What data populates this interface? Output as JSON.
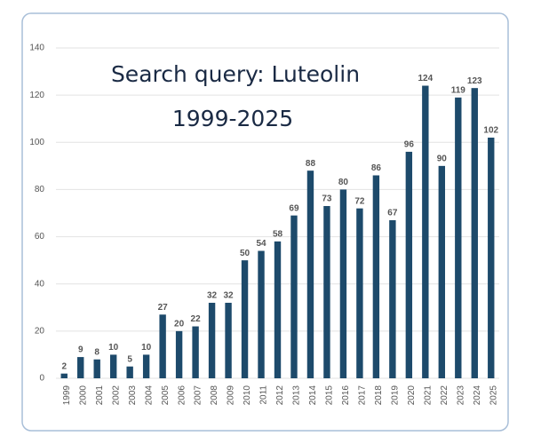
{
  "chart_data": {
    "type": "bar",
    "title": "Search query: Luteolin",
    "subtitle": "1999-2025",
    "categories": [
      "1999",
      "2000",
      "2001",
      "2002",
      "2003",
      "2004",
      "2005",
      "2006",
      "2007",
      "2008",
      "2009",
      "2010",
      "2011",
      "2012",
      "2013",
      "2014",
      "2015",
      "2016",
      "2017",
      "2018",
      "2019",
      "2020",
      "2021",
      "2022",
      "2023",
      "2024",
      "2025"
    ],
    "values": [
      2,
      9,
      8,
      10,
      5,
      10,
      27,
      20,
      22,
      32,
      32,
      50,
      54,
      58,
      69,
      88,
      73,
      80,
      72,
      86,
      67,
      96,
      124,
      90,
      119,
      123,
      102
    ],
    "color": "#1d4a6b",
    "ylim": [
      0,
      140
    ],
    "yticks": [
      0,
      20,
      40,
      60,
      80,
      100,
      120,
      140
    ],
    "grid": true
  }
}
